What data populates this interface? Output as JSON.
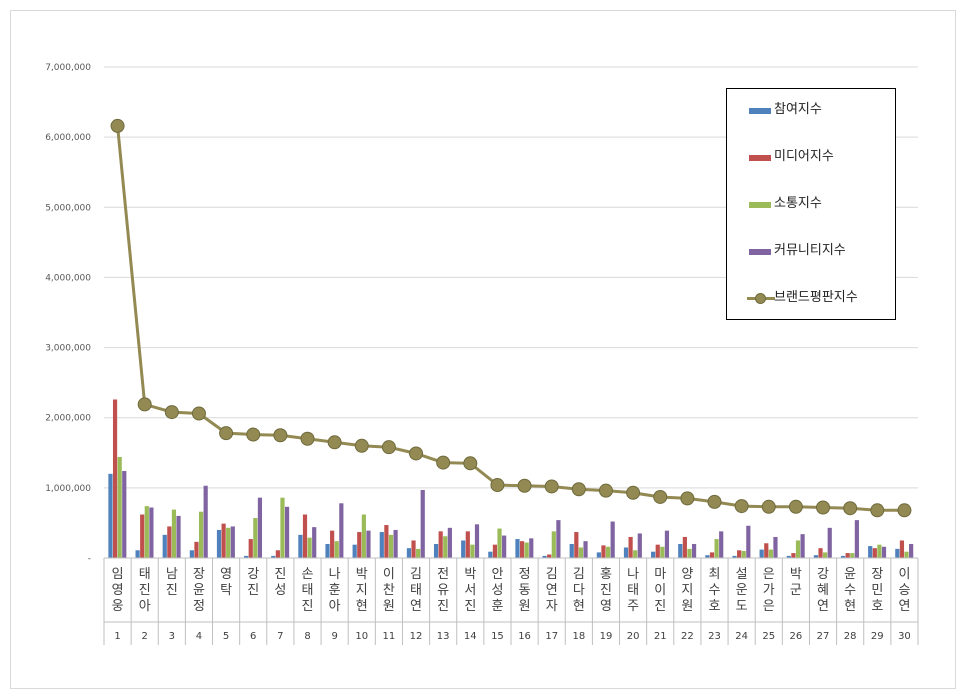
{
  "chart_data": {
    "type": "bar",
    "categories": [
      "임영웅",
      "태진아",
      "남진",
      "장윤정",
      "영탁",
      "강진",
      "진성",
      "손태진",
      "나훈아",
      "박지현",
      "이찬원",
      "김태연",
      "전유진",
      "박서진",
      "안성훈",
      "정동원",
      "김연자",
      "김다현",
      "홍진영",
      "나태주",
      "마이진",
      "양지원",
      "최수호",
      "설운도",
      "은가은",
      "박군",
      "강혜연",
      "윤수현",
      "장민호",
      "이승연"
    ],
    "ranks": [
      "1",
      "2",
      "3",
      "4",
      "5",
      "6",
      "7",
      "8",
      "9",
      "10",
      "11",
      "12",
      "13",
      "14",
      "15",
      "16",
      "17",
      "18",
      "19",
      "20",
      "21",
      "22",
      "23",
      "24",
      "25",
      "26",
      "27",
      "28",
      "29",
      "30"
    ],
    "series": [
      {
        "name": "참여지수",
        "type": "bar",
        "color": "#4f81bd",
        "values": [
          1200000,
          110000,
          330000,
          110000,
          400000,
          30000,
          30000,
          330000,
          200000,
          190000,
          370000,
          140000,
          200000,
          250000,
          90000,
          270000,
          30000,
          200000,
          80000,
          150000,
          90000,
          200000,
          40000,
          30000,
          120000,
          30000,
          40000,
          30000,
          170000,
          130000
        ]
      },
      {
        "name": "미디어지수",
        "type": "bar",
        "color": "#c0504d",
        "values": [
          2260000,
          620000,
          450000,
          230000,
          490000,
          270000,
          110000,
          620000,
          390000,
          370000,
          470000,
          250000,
          380000,
          380000,
          190000,
          240000,
          50000,
          370000,
          180000,
          300000,
          190000,
          300000,
          80000,
          110000,
          210000,
          70000,
          140000,
          70000,
          140000,
          250000
        ]
      },
      {
        "name": "소통지수",
        "type": "bar",
        "color": "#9bbb59",
        "values": [
          1440000,
          740000,
          690000,
          660000,
          430000,
          570000,
          860000,
          290000,
          240000,
          620000,
          330000,
          130000,
          310000,
          190000,
          420000,
          220000,
          380000,
          150000,
          160000,
          110000,
          160000,
          130000,
          270000,
          100000,
          120000,
          250000,
          80000,
          70000,
          190000,
          90000
        ]
      },
      {
        "name": "커뮤니티지수",
        "type": "bar",
        "color": "#8064a2",
        "values": [
          1240000,
          720000,
          600000,
          1030000,
          450000,
          860000,
          730000,
          440000,
          780000,
          390000,
          400000,
          970000,
          430000,
          480000,
          320000,
          280000,
          540000,
          240000,
          520000,
          350000,
          390000,
          200000,
          380000,
          460000,
          300000,
          340000,
          430000,
          540000,
          160000,
          200000
        ]
      },
      {
        "name": "브랜드평판지수",
        "type": "line",
        "color": "#938953",
        "values": [
          6160000,
          2190000,
          2080000,
          2060000,
          1780000,
          1760000,
          1750000,
          1700000,
          1650000,
          1600000,
          1580000,
          1490000,
          1360000,
          1350000,
          1040000,
          1030000,
          1020000,
          980000,
          960000,
          930000,
          870000,
          850000,
          800000,
          740000,
          730000,
          730000,
          720000,
          710000,
          680000,
          680000
        ]
      }
    ],
    "ylim": [
      0,
      7000000
    ],
    "yticks": [
      "-",
      "1,000,000",
      "2,000,000",
      "3,000,000",
      "4,000,000",
      "5,000,000",
      "6,000,000",
      "7,000,000"
    ],
    "ytick_values": [
      0,
      1000000,
      2000000,
      3000000,
      4000000,
      5000000,
      6000000,
      7000000
    ],
    "grid": true,
    "legend": "top-right",
    "title": "",
    "xlabel": "",
    "ylabel": ""
  }
}
